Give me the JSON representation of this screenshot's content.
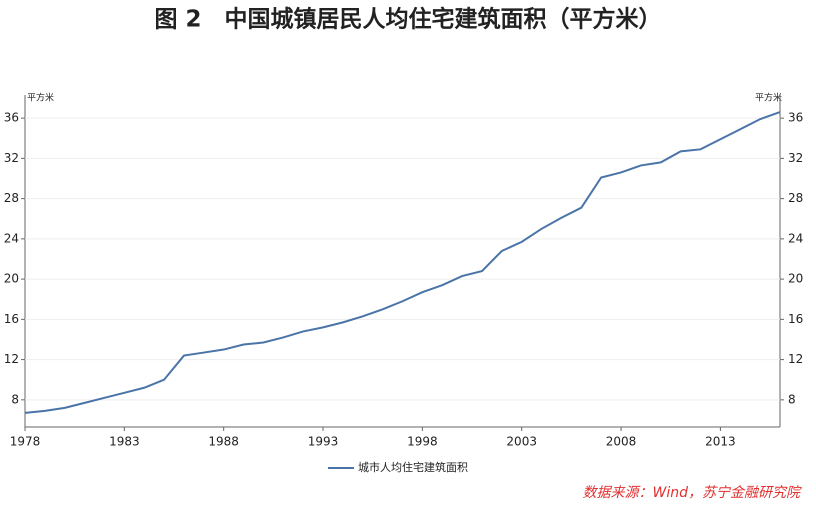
{
  "chart_data": {
    "type": "line",
    "title": "图 2　中国城镇居民人均住宅建筑面积（平方米）",
    "y_unit": "平方米",
    "source": "数据来源：Wind，苏宁金融研究院",
    "x": [
      1978,
      1979,
      1980,
      1981,
      1982,
      1983,
      1984,
      1985,
      1986,
      1987,
      1988,
      1989,
      1990,
      1991,
      1992,
      1993,
      1994,
      1995,
      1996,
      1997,
      1998,
      1999,
      2000,
      2001,
      2002,
      2003,
      2004,
      2005,
      2006,
      2007,
      2008,
      2009,
      2010,
      2011,
      2012,
      2013,
      2014,
      2015,
      2016
    ],
    "series": [
      {
        "name": "城市人均住宅建筑面积",
        "color": "#4a74a8",
        "values": [
          6.7,
          6.9,
          7.2,
          7.7,
          8.2,
          8.7,
          9.2,
          10.0,
          12.4,
          12.7,
          13.0,
          13.5,
          13.7,
          14.2,
          14.8,
          15.2,
          15.7,
          16.3,
          17.0,
          17.8,
          18.7,
          19.4,
          20.3,
          20.8,
          22.8,
          23.7,
          25.0,
          26.1,
          27.1,
          30.1,
          30.6,
          31.3,
          31.6,
          32.7,
          32.9,
          33.9,
          34.9,
          35.9,
          36.6
        ]
      }
    ],
    "xlim": [
      1978,
      2016
    ],
    "xticks": [
      1978,
      1983,
      1988,
      1993,
      1998,
      2003,
      2008,
      2013
    ],
    "ylim": [
      5.3,
      38.3
    ],
    "yticks": [
      8,
      12,
      16,
      20,
      24,
      28,
      32,
      36
    ],
    "grid": true
  }
}
